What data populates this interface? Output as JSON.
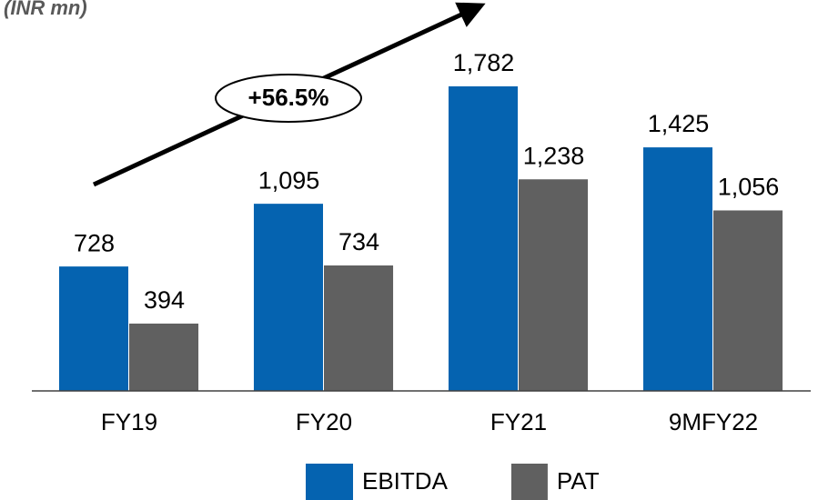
{
  "chart_data": {
    "type": "bar",
    "subtitle": "(INR mn)",
    "annotation": "+56.5%",
    "categories": [
      "FY19",
      "FY20",
      "FY21",
      "9MFY22"
    ],
    "series": [
      {
        "name": "EBITDA",
        "color": "#0563b0",
        "values": [
          728,
          1095,
          1782,
          1425
        ],
        "value_labels": [
          "728",
          "1,095",
          "1,782",
          "1,425"
        ]
      },
      {
        "name": "PAT",
        "color": "#606060",
        "values": [
          394,
          734,
          1238,
          1056
        ],
        "value_labels": [
          "394",
          "734",
          "1,238",
          "1,056"
        ]
      }
    ],
    "ylim": [
      0,
      2000
    ],
    "legend": "bottom"
  }
}
